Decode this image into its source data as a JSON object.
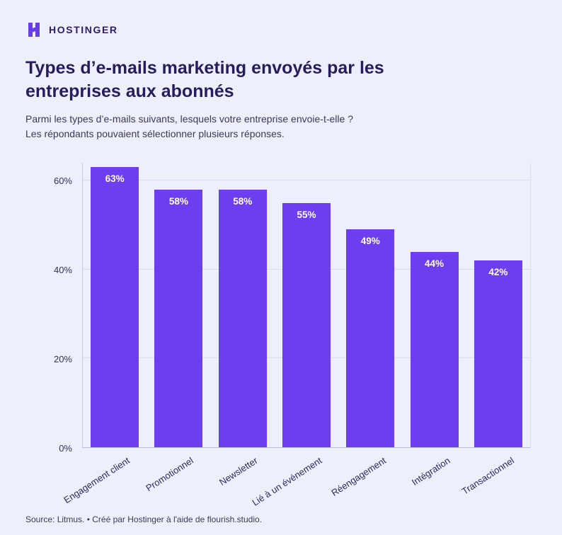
{
  "brand": {
    "name": "HOSTINGER"
  },
  "header": {
    "title": "Types d’e-mails marketing envoyés par les entreprises aux abonnés",
    "subtitle_line1": "Parmi les types d’e-mails suivants, lesquels votre entreprise envoie-t-elle ?",
    "subtitle_line2": "Les répondants pouvaient sélectionner plusieurs réponses."
  },
  "chart_data": {
    "type": "bar",
    "title": "Types d’e-mails marketing envoyés par les entreprises aux abonnés",
    "categories": [
      "Engagement client",
      "Promotionnel",
      "Newsletter",
      "Lié à un événement",
      "Réengagement",
      "Intégration",
      "Transactionnel"
    ],
    "values": [
      63,
      58,
      58,
      55,
      49,
      44,
      42
    ],
    "value_labels": [
      "63%",
      "58%",
      "58%",
      "55%",
      "49%",
      "44%",
      "42%"
    ],
    "xlabel": "",
    "ylabel": "",
    "ylim": [
      0,
      64
    ],
    "yticks": [
      0,
      20,
      40,
      60
    ],
    "ytick_labels": [
      "0%",
      "20%",
      "40%",
      "60%"
    ],
    "grid": true,
    "legend": "none",
    "bar_color": "#6C3EF0"
  },
  "footer": {
    "source": "Source: Litmus. • Créé par Hostinger à l'aide de flourish.studio."
  },
  "colors": {
    "background": "#EDEFFB",
    "bar": "#6C3EF0",
    "brand_purple": "#673DE6",
    "title_text": "#261C5E",
    "body_text": "#3C3856",
    "axis_text": "#34305C",
    "grid_line": "#D9DCF0"
  }
}
